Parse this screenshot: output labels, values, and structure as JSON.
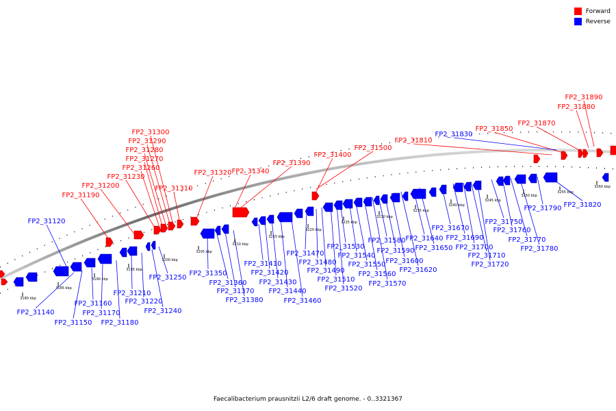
{
  "legend": {
    "forward_label": "Forward",
    "reverse_label": "Reverse",
    "forward_color": "#ff0000",
    "reverse_color": "#0000ff"
  },
  "caption": "Faecalibacterium prausnitzii L2/6 draft genome. - 0..3321367",
  "kbp_labels": [
    "3180 kbp",
    "3185 kbp",
    "3190 kbp",
    "3195 kbp",
    "3200 kbp",
    "3205 kbp",
    "3210 kbp",
    "3215 kbp",
    "3220 kbp",
    "3225 kbp",
    "3230 kbp",
    "3235 kbp",
    "3240 kbp",
    "3245 kbp",
    "3250 kbp",
    "3255 kbp",
    "3260 kbp"
  ],
  "forward_genes": [
    "FP2_31190",
    "FP2_31200",
    "FP2_31230",
    "FP2_31260",
    "FP2_31270",
    "FP2_31280",
    "FP2_31290",
    "FP2_31300",
    "FP2_31310",
    "FP2_31320",
    "FP2_31340",
    "FP2_31390",
    "FP2_31400",
    "FP2_31500",
    "FP2_31810",
    "FP2_31850",
    "FP2_31870",
    "FP2_31880",
    "FP2_31890"
  ],
  "reverse_genes": [
    "FP2_31120",
    "FP2_31830",
    "FP2_31820",
    "FP2_31790",
    "FP2_31750",
    "FP2_31760",
    "FP2_31770",
    "FP2_31780",
    "FP2_31670",
    "FP2_31690",
    "FP2_31700",
    "FP2_31710",
    "FP2_31720",
    "FP2_31640",
    "FP2_31650",
    "FP2_31580",
    "FP2_31590",
    "FP2_31600",
    "FP2_31620",
    "FP2_31530",
    "FP2_31540",
    "FP2_31550",
    "FP2_31560",
    "FP2_31570",
    "FP2_31470",
    "FP2_31480",
    "FP2_31490",
    "FP2_31510",
    "FP2_31520",
    "FP2_31410",
    "FP2_31420",
    "FP2_31430",
    "FP2_31440",
    "FP2_31460",
    "FP2_31350",
    "FP2_31360",
    "FP2_31370",
    "FP2_31380",
    "FP2_31250",
    "FP2_31210",
    "FP2_31220",
    "FP2_31240",
    "FP2_31140",
    "FP2_31150",
    "FP2_31160",
    "FP2_31170",
    "FP2_31180"
  ]
}
